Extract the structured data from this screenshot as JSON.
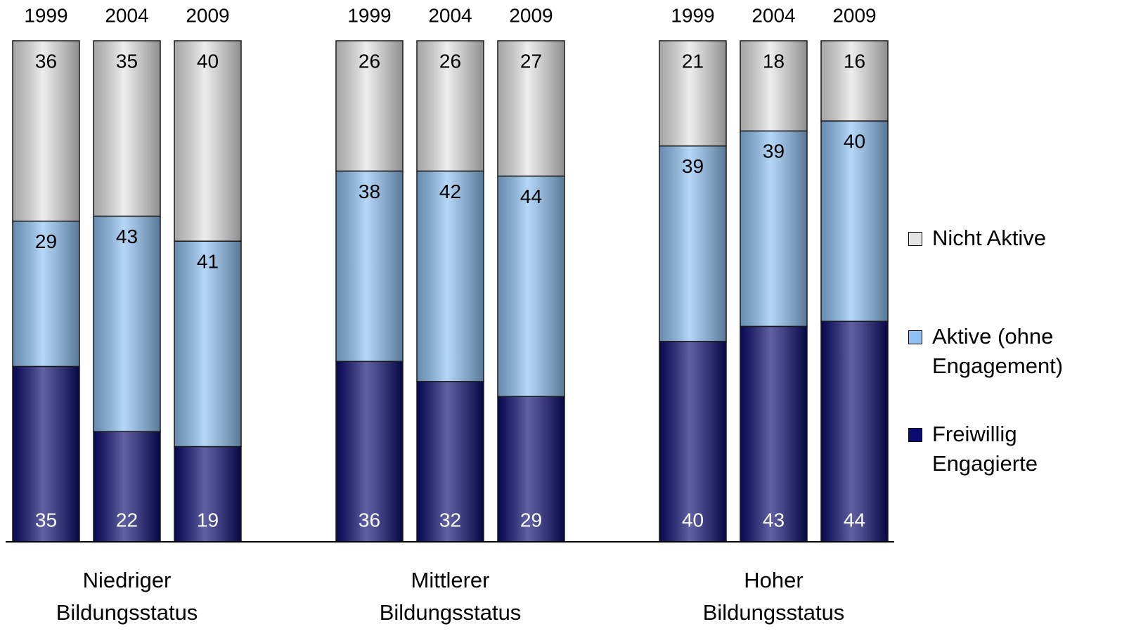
{
  "chart_data": {
    "type": "stacked_bar",
    "groups": [
      "Niedriger Bildungsstatus",
      "Mittlerer Bildungsstatus",
      "Hoher Bildungsstatus"
    ],
    "categories": [
      "1999",
      "2004",
      "2009",
      "1999",
      "2004",
      "2009",
      "1999",
      "2004",
      "2009"
    ],
    "series": [
      {
        "name": "Freiwillig Engagierte",
        "color": "#0b0b72",
        "values": [
          35,
          22,
          19,
          36,
          32,
          29,
          40,
          43,
          44
        ]
      },
      {
        "name": "Aktive (ohne Engagement)",
        "color": "#8ec2f4",
        "values": [
          29,
          43,
          41,
          38,
          42,
          44,
          39,
          39,
          40
        ]
      },
      {
        "name": "Nicht Aktive",
        "color": "#e4e4e4",
        "values": [
          36,
          35,
          40,
          26,
          26,
          27,
          21,
          18,
          16
        ]
      }
    ],
    "ylim": [
      0,
      100
    ],
    "legend": "right"
  }
}
